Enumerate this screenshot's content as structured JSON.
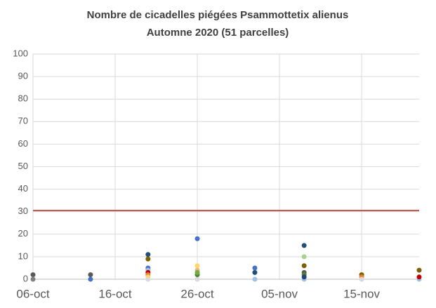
{
  "chart_data": {
    "type": "scatter",
    "title": [
      "Nombre de cicadelles piégées Psammottetix alienus",
      "Automne 2020 (51 parcelles)"
    ],
    "x": [
      "06-oct",
      "13-oct",
      "20-oct",
      "26-oct",
      "02-nov",
      "08-nov",
      "15-nov",
      "22-nov"
    ],
    "xlim": [
      "06-oct",
      "22-nov"
    ],
    "xticks": [
      "06-oct",
      "16-oct",
      "26-oct",
      "05-nov",
      "15-nov"
    ],
    "ylim": [
      0,
      100
    ],
    "yticks": [
      0,
      10,
      20,
      30,
      40,
      50,
      60,
      70,
      80,
      90,
      100
    ],
    "grid": true,
    "reference_line": {
      "value": 30.5,
      "color": "#c0504d"
    },
    "series": [
      {
        "color": "#1f4e79",
        "values": [
          null,
          null,
          11,
          null,
          3,
          15,
          null,
          null
        ]
      },
      {
        "color": "#4472c4",
        "values": [
          null,
          0,
          5,
          18,
          5,
          null,
          null,
          null
        ]
      },
      {
        "color": "#9dc3e6",
        "values": [
          null,
          null,
          4,
          null,
          0,
          0,
          null,
          0
        ]
      },
      {
        "color": "#7f6000",
        "values": [
          null,
          null,
          9,
          null,
          null,
          6,
          2,
          4
        ]
      },
      {
        "color": "#c00000",
        "values": [
          null,
          null,
          3,
          null,
          null,
          null,
          null,
          1
        ]
      },
      {
        "color": "#ed7d31",
        "values": [
          null,
          null,
          2,
          null,
          null,
          null,
          1,
          null
        ]
      },
      {
        "color": "#ffd966",
        "values": [
          null,
          null,
          1,
          6,
          null,
          null,
          null,
          null
        ]
      },
      {
        "color": "#d9d9d9",
        "values": [
          null,
          null,
          0,
          0,
          null,
          null,
          0,
          null
        ]
      },
      {
        "color": "#595959",
        "values": [
          2,
          2,
          null,
          null,
          null,
          3,
          null,
          null
        ]
      },
      {
        "color": "#808080",
        "values": [
          0,
          null,
          null,
          null,
          null,
          null,
          null,
          null
        ]
      },
      {
        "color": "#f4b183",
        "values": [
          null,
          null,
          null,
          4,
          null,
          null,
          null,
          null
        ]
      },
      {
        "color": "#548235",
        "values": [
          null,
          null,
          null,
          2,
          null,
          2,
          null,
          null
        ]
      },
      {
        "color": "#70ad47",
        "values": [
          null,
          null,
          null,
          3,
          null,
          null,
          null,
          null
        ]
      },
      {
        "color": "#a9d18e",
        "values": [
          null,
          null,
          null,
          null,
          null,
          10,
          null,
          null
        ]
      },
      {
        "color": "#264478",
        "values": [
          null,
          null,
          null,
          null,
          null,
          1,
          null,
          null
        ]
      }
    ]
  }
}
